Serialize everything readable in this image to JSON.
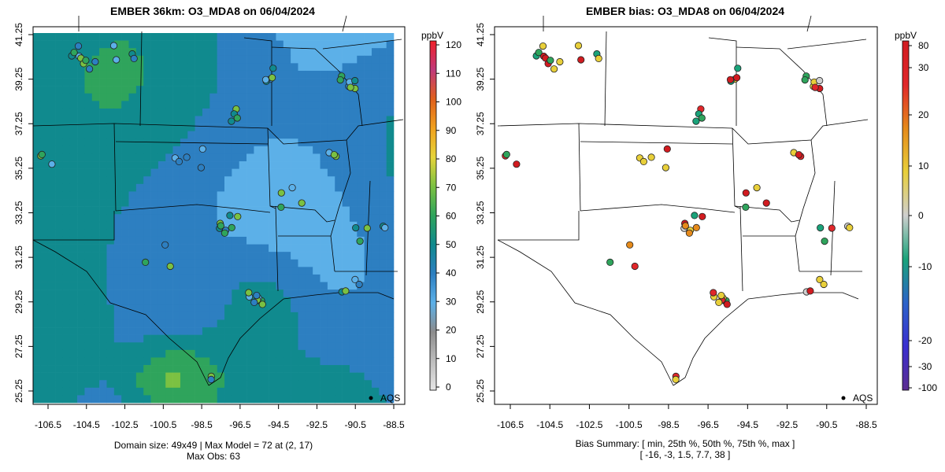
{
  "panels": [
    {
      "title": "EMBER 36km: O3_MDA8 on 06/04/2024",
      "type": "model",
      "x_ticks": [
        "-106.5",
        "-104.5",
        "-102.5",
        "-100.5",
        "-98.5",
        "-96.5",
        "-94.5",
        "-92.5",
        "-90.5",
        "-88.5"
      ],
      "y_ticks": [
        "25.25",
        "27.25",
        "29.25",
        "31.25",
        "33.25",
        "35.25",
        "37.25",
        "39.25",
        "41.25"
      ],
      "colorbar": {
        "unit": "ppbV",
        "ticks": [
          "0",
          "10",
          "20",
          "30",
          "40",
          "50",
          "60",
          "70",
          "80",
          "90",
          "100",
          "110",
          "120"
        ],
        "range": [
          0,
          120
        ]
      },
      "legend_label": "AQS",
      "footer_line1": "Domain size: 49x49 | Max Model = 72 at (2, 17)",
      "footer_line2": "Max Obs: 63"
    },
    {
      "title": "EMBER bias: O3_MDA8 on 06/04/2024",
      "type": "bias",
      "x_ticks": [
        "-106.5",
        "-104.5",
        "-102.5",
        "-100.5",
        "-98.5",
        "-96.5",
        "-94.5",
        "-92.5",
        "-90.5",
        "-88.5"
      ],
      "y_ticks": [
        "25.25",
        "27.25",
        "29.25",
        "31.25",
        "33.25",
        "35.25",
        "37.25",
        "39.25",
        "41.25"
      ],
      "colorbar": {
        "unit": "ppbV",
        "ticks": [
          "-100",
          "-30",
          "-20",
          "-10",
          "0",
          "10",
          "20",
          "30",
          "80"
        ]
      },
      "legend_label": "AQS",
      "footer_line1": "Bias Summary: [ min, 25th %, 50th %, 75th %, max ]",
      "footer_line2": "[ -16,   -3,   1.5,   7.7,   38 ]"
    }
  ],
  "colors": {
    "model_scale": [
      "#e6e6e6",
      "#bdbdbd",
      "#8c8c8c",
      "#5cb0e8",
      "#2d7fc1",
      "#108a8e",
      "#2fa45c",
      "#7bc142",
      "#e6d43a",
      "#f0a11e",
      "#e0601c",
      "#c0397a",
      "#f0202a"
    ],
    "bias_scale": [
      "#5c2d91",
      "#3a2fd0",
      "#2c63c9",
      "#1aa37a",
      "#cfcfcf",
      "#e8cf3a",
      "#e58a1b",
      "#e0272a",
      "#d11b20"
    ]
  }
}
